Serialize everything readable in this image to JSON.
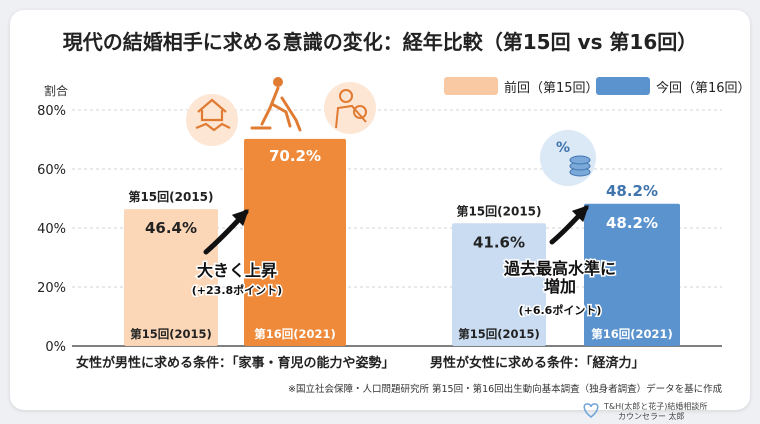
{
  "title": "現代の結婚相手に求める意識の変化：経年比較（第15回 vs 第16回）",
  "legend": [
    {
      "label": "前回（第15回）",
      "color": "#f8c9a2"
    },
    {
      "label": "今回（第16回）",
      "color": "#5b93cf"
    }
  ],
  "chart_data": {
    "type": "bar",
    "ylabel": "割合",
    "ylim": [
      0,
      80
    ],
    "yticks": [
      "0%",
      "20%",
      "40%",
      "60%",
      "80%"
    ],
    "categories": [
      "女性が男性に求める条件：「家事・育児の能力や姿勢」",
      "男性が女性に求める条件：「経済力」"
    ],
    "series": [
      {
        "name": "前回（第15回）",
        "values": [
          46.4,
          41.6
        ]
      },
      {
        "name": "今回（第16回）",
        "values": [
          70.2,
          48.2
        ]
      }
    ],
    "value_labels": [
      [
        "46.4%",
        "70.2%"
      ],
      [
        "41.6%",
        "48.2%"
      ]
    ],
    "bar_labels": [
      [
        "第15回(2015)",
        "第16回(2021)"
      ],
      [
        "第15回(2015)",
        "第16回(2021)"
      ]
    ],
    "bar_top_labels": [
      [
        "第15回(2015)",
        ""
      ],
      [
        "第15回(2015)",
        "48.2%"
      ]
    ],
    "annotations": [
      {
        "text": "大きく上昇",
        "sub": "(+23.8ポイント)"
      },
      {
        "text": "過去最高水準に\n増加",
        "sub": "(+6.6ポイント)"
      }
    ],
    "colors": {
      "female_prev": "#fbd7b8",
      "female_curr": "#ef8a3a",
      "male_prev": "#c9dcf1",
      "male_curr": "#5b93cf"
    }
  },
  "source": "※国立社会保障・人口問題研究所 第15回・第16回出生動向基本調査（独身者調査）データを基に作成",
  "brand": {
    "line1": "T&H(太郎と花子)結婚相談所",
    "line2": "カウンセラー 太郎"
  },
  "icons": [
    "handshake-house-icon",
    "cleaning-person-icon",
    "parent-baby-icon",
    "coins-percent-icon"
  ]
}
